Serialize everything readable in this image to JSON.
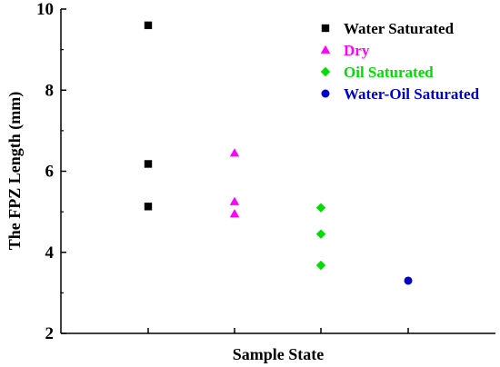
{
  "chart_data": {
    "type": "scatter",
    "title": "",
    "xlabel": "Sample State",
    "ylabel": "The FPZ Length (mm)",
    "ylim": [
      2,
      10
    ],
    "yticks": [
      "2",
      "4",
      "6",
      "8",
      "10"
    ],
    "categories_count": 4,
    "grid": false,
    "legend_position": "top-right",
    "series": [
      {
        "name": "Water Saturated",
        "color": "#000000",
        "marker": "square",
        "x": 1,
        "values": [
          9.6,
          6.18,
          5.13
        ]
      },
      {
        "name": "Dry",
        "color": "#ff00ff",
        "marker": "triangle",
        "x": 2,
        "values": [
          6.45,
          5.25,
          4.95
        ]
      },
      {
        "name": "Oil Saturated",
        "color": "#00dd00",
        "marker": "diamond",
        "x": 3,
        "values": [
          5.1,
          4.45,
          3.68
        ]
      },
      {
        "name": "Water-Oil Saturated",
        "color": "#0000cc",
        "marker": "circle",
        "x": 4,
        "values": [
          3.3
        ]
      }
    ]
  }
}
